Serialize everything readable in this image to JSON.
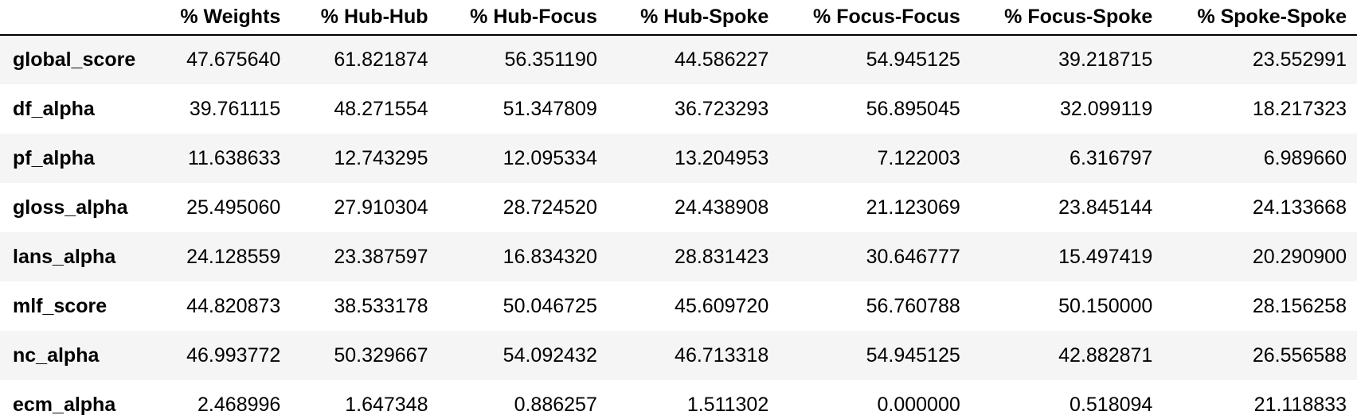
{
  "table": {
    "columns": [
      "% Weights",
      "% Hub-Hub",
      "% Hub-Focus",
      "% Hub-Spoke",
      "% Focus-Focus",
      "% Focus-Spoke",
      "% Spoke-Spoke"
    ],
    "rows": [
      {
        "label": "global_score",
        "values": [
          "47.675640",
          "61.821874",
          "56.351190",
          "44.586227",
          "54.945125",
          "39.218715",
          "23.552991"
        ]
      },
      {
        "label": "df_alpha",
        "values": [
          "39.761115",
          "48.271554",
          "51.347809",
          "36.723293",
          "56.895045",
          "32.099119",
          "18.217323"
        ]
      },
      {
        "label": "pf_alpha",
        "values": [
          "11.638633",
          "12.743295",
          "12.095334",
          "13.204953",
          "7.122003",
          "6.316797",
          "6.989660"
        ]
      },
      {
        "label": "gloss_alpha",
        "values": [
          "25.495060",
          "27.910304",
          "28.724520",
          "24.438908",
          "21.123069",
          "23.845144",
          "24.133668"
        ]
      },
      {
        "label": "lans_alpha",
        "values": [
          "24.128559",
          "23.387597",
          "16.834320",
          "28.831423",
          "30.646777",
          "15.497419",
          "20.290900"
        ]
      },
      {
        "label": "mlf_score",
        "values": [
          "44.820873",
          "38.533178",
          "50.046725",
          "45.609720",
          "56.760788",
          "50.150000",
          "28.156258"
        ]
      },
      {
        "label": "nc_alpha",
        "values": [
          "46.993772",
          "50.329667",
          "54.092432",
          "46.713318",
          "54.945125",
          "42.882871",
          "26.556588"
        ]
      },
      {
        "label": "ecm_alpha",
        "values": [
          "2.468996",
          "1.647348",
          "0.886257",
          "1.511302",
          "0.000000",
          "0.518094",
          "21.118833"
        ]
      }
    ]
  },
  "colors": {
    "header_rule": "#000000",
    "row_stripe": "#f5f5f5",
    "background": "#ffffff",
    "text": "#000000"
  }
}
